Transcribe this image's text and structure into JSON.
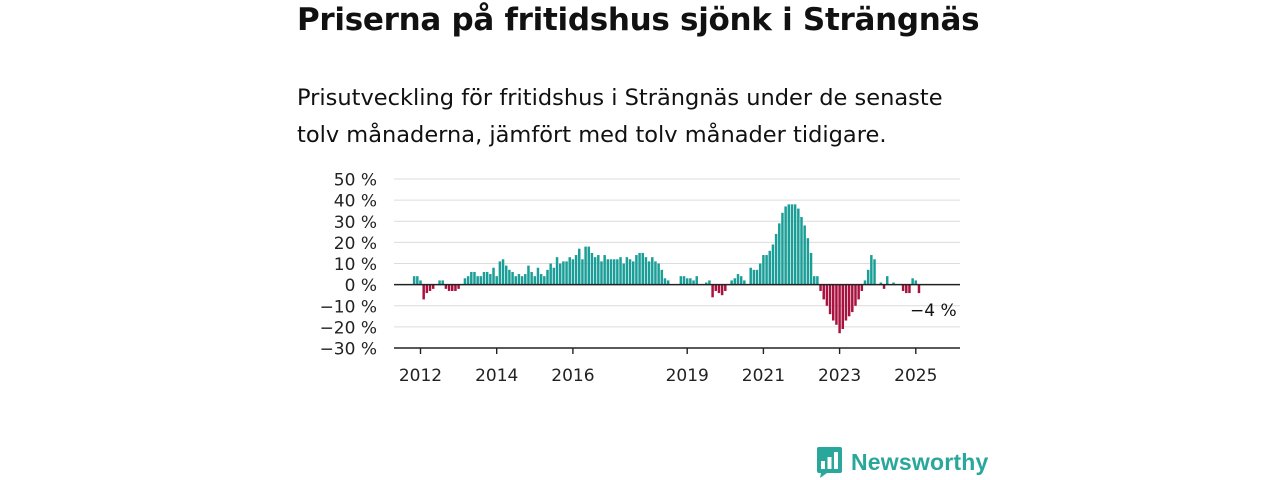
{
  "title": "Priserna på fritidshus sjönk i Strängnäs",
  "subtitle": "Prisutveckling för fritidshus i Strängnäs under de senaste tolv månaderna, jämfört med tolv månader tidigare.",
  "brand": {
    "name": "Newsworthy",
    "icon": "bar-chart-speech-bubble-icon"
  },
  "colors": {
    "positive": "#1a9e97",
    "negative": "#a8123f",
    "grid": "#dcdcdc",
    "axis": "#222222",
    "brand": "#2aa79b"
  },
  "chart_data": {
    "type": "bar",
    "yunit": "%",
    "ylim": [
      -30,
      50
    ],
    "yticks": [
      50,
      40,
      30,
      20,
      10,
      0,
      -10,
      -20,
      -30
    ],
    "ytick_labels": [
      "50 %",
      "40 %",
      "30 %",
      "20 %",
      "10 %",
      "0 %",
      "−10 %",
      "−20 %",
      "−30 %"
    ],
    "xticks": [
      2012,
      2014,
      2016,
      2019,
      2021,
      2023,
      2025
    ],
    "grid": true,
    "annotation": {
      "text": "−4 %",
      "value": -4
    },
    "series": [
      {
        "start": "2011-11",
        "frequency": "monthly",
        "values": [
          4,
          4,
          2,
          -7,
          -4,
          -3,
          -2,
          0,
          2,
          2,
          -2,
          -3,
          -3,
          -3,
          -2,
          0,
          3,
          4,
          6,
          6,
          4,
          4,
          6,
          6,
          5,
          8,
          4,
          11,
          12,
          9,
          7,
          6,
          4,
          5,
          4,
          5,
          9,
          6,
          4,
          8,
          5,
          4,
          7,
          10,
          8,
          13,
          10,
          11,
          11,
          13,
          12,
          14,
          17,
          12,
          18,
          18,
          15,
          13,
          14,
          11,
          14,
          12,
          12,
          12,
          12,
          13,
          10,
          13,
          12,
          11,
          14,
          15,
          15,
          13,
          11,
          13,
          11,
          10,
          7,
          3,
          2,
          0,
          0,
          0,
          4,
          4,
          3,
          3,
          2,
          4,
          0,
          0,
          1,
          2,
          -6,
          -3,
          -4,
          -5,
          -3,
          0,
          2,
          3,
          5,
          4,
          2,
          0,
          8,
          7,
          7,
          10,
          14,
          14,
          16,
          19,
          24,
          29,
          34,
          37,
          38,
          38,
          38,
          36,
          32,
          28,
          22,
          15,
          4,
          4,
          -3,
          -7,
          -10,
          -14,
          -17,
          -19,
          -23,
          -21,
          -17,
          -15,
          -13,
          -10,
          -7,
          -3,
          2,
          7,
          14,
          12,
          0,
          1,
          -2,
          4,
          0,
          1,
          0,
          0,
          -3,
          -4,
          -4,
          3,
          2,
          -4
        ]
      }
    ]
  }
}
